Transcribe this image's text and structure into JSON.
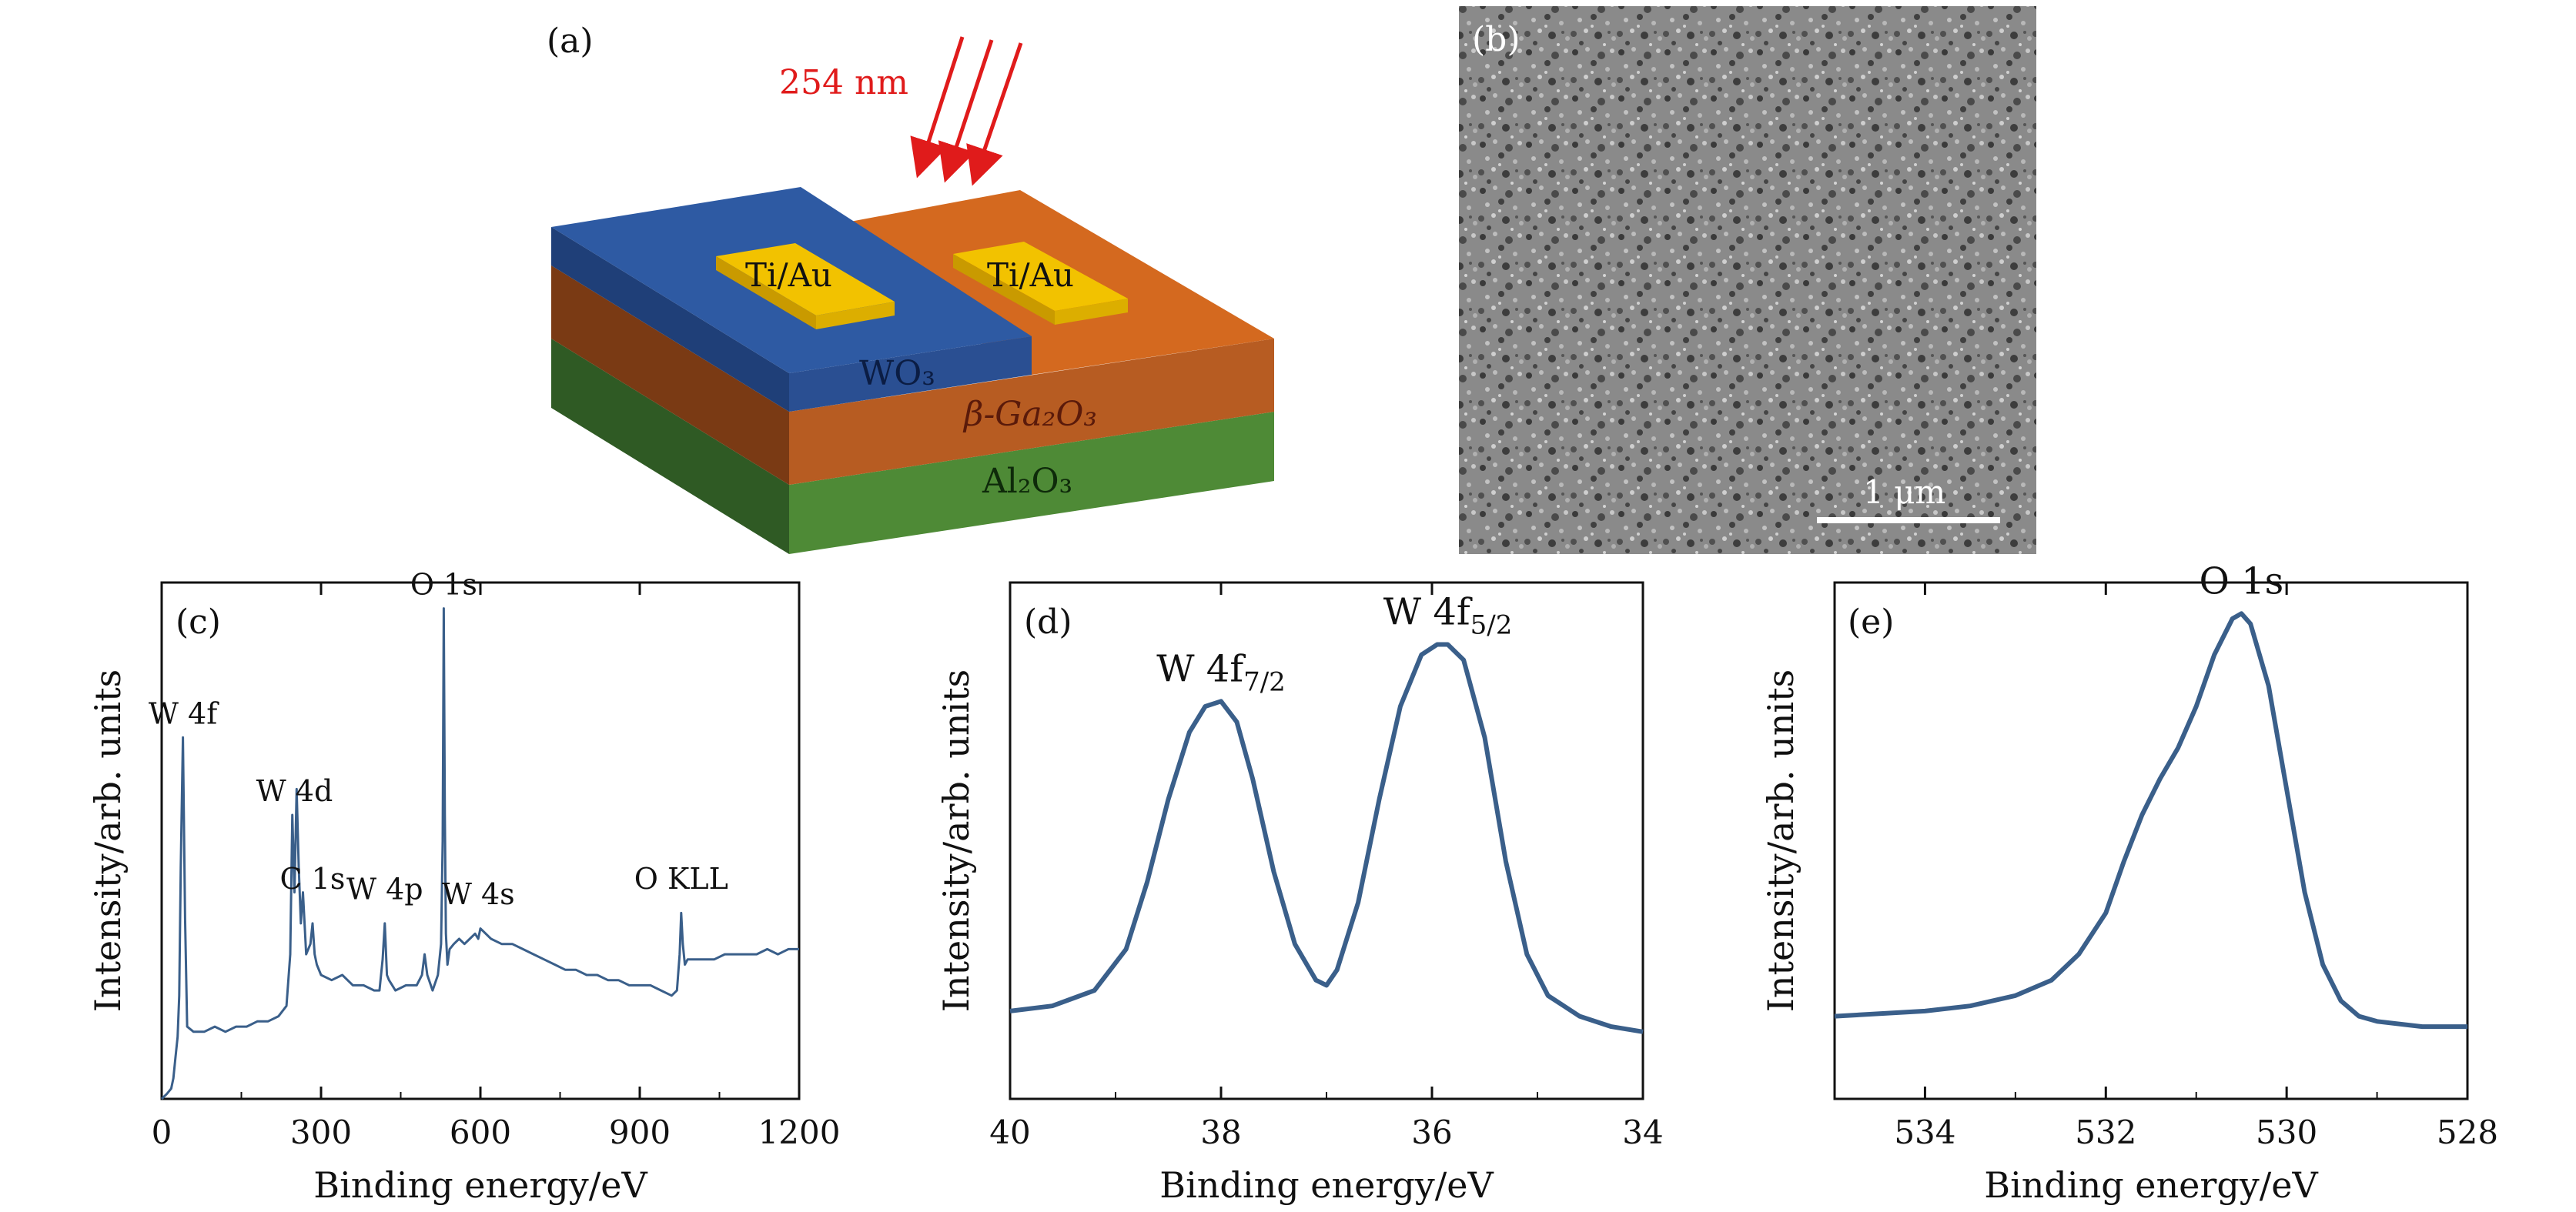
{
  "panels": {
    "a": {
      "label": "(a)",
      "light_label": "254 nm",
      "layers": {
        "wo3": "WO₃",
        "ga2o3": "β-Ga₂O₃",
        "al2o3": "Al₂O₃"
      },
      "electrodes": [
        "Ti/Au",
        "Ti/Au"
      ],
      "colors": {
        "wo3": "#2e5aa3",
        "ga2o3": "#d4691f",
        "al2o3": "#4e8a36",
        "electrode": "#f2c200",
        "light": "#e01b1b"
      }
    },
    "b": {
      "label": "(b)",
      "scale_bar_label": "1 μm"
    },
    "c": {
      "label": "(c)"
    },
    "d": {
      "label": "(d)"
    },
    "e": {
      "label": "(e)"
    }
  },
  "chart_data": [
    {
      "id": "c",
      "type": "line",
      "xlabel": "Binding energy/eV",
      "ylabel": "Intensity/arb. units",
      "xlim": [
        0,
        1200
      ],
      "xticks": [
        0,
        300,
        600,
        900,
        1200
      ],
      "tick_labels": [
        "0",
        "300",
        "600",
        "900",
        "1200"
      ],
      "ylim": [
        0,
        100
      ],
      "line_color": "#3a5f8a",
      "series": [
        {
          "x": [
            0,
            10,
            18,
            22,
            26,
            30,
            33,
            36,
            40,
            44,
            48,
            60,
            80,
            100,
            120,
            140,
            160,
            180,
            200,
            220,
            235,
            242,
            246,
            250,
            254,
            258,
            262,
            266,
            272,
            280,
            284,
            288,
            292,
            300,
            320,
            340,
            360,
            380,
            400,
            410,
            416,
            420,
            424,
            428,
            434,
            440,
            460,
            480,
            490,
            495,
            500,
            510,
            520,
            526,
            529,
            531,
            533,
            535,
            538,
            542,
            550,
            560,
            570,
            580,
            590,
            596,
            600,
            620,
            640,
            660,
            680,
            700,
            720,
            740,
            760,
            780,
            800,
            820,
            840,
            860,
            880,
            900,
            920,
            940,
            960,
            970,
            975,
            978,
            981,
            985,
            990,
            1000,
            1020,
            1040,
            1060,
            1080,
            1100,
            1120,
            1140,
            1160,
            1180,
            1200
          ],
          "y": [
            0,
            1,
            2,
            4,
            8,
            12,
            20,
            45,
            70,
            35,
            14,
            13,
            13,
            14,
            13,
            14,
            14,
            15,
            15,
            16,
            18,
            28,
            55,
            40,
            60,
            45,
            34,
            40,
            28,
            30,
            34,
            28,
            26,
            24,
            23,
            24,
            22,
            22,
            21,
            21,
            27,
            34,
            24,
            23,
            22,
            21,
            22,
            22,
            24,
            28,
            24,
            21,
            24,
            30,
            50,
            95,
            55,
            32,
            26,
            29,
            30,
            31,
            30,
            31,
            32,
            31,
            33,
            31,
            30,
            30,
            29,
            28,
            27,
            26,
            25,
            25,
            24,
            24,
            23,
            23,
            22,
            22,
            22,
            21,
            20,
            21,
            28,
            36,
            30,
            26,
            27,
            27,
            27,
            27,
            28,
            28,
            28,
            28,
            29,
            28,
            29,
            29
          ]
        }
      ],
      "annotations": [
        {
          "text": "W 4f",
          "x": 40,
          "y": 70
        },
        {
          "text": "W 4d",
          "x": 250,
          "y": 55
        },
        {
          "text": "C 1s",
          "x": 284,
          "y": 38
        },
        {
          "text": "W 4p",
          "x": 420,
          "y": 36
        },
        {
          "text": "W 4s",
          "x": 596,
          "y": 35
        },
        {
          "text": "O 1s",
          "x": 531,
          "y": 95
        },
        {
          "text": "O KLL",
          "x": 978,
          "y": 38
        }
      ]
    },
    {
      "id": "d",
      "type": "line",
      "xlabel": "Binding energy/eV",
      "ylabel": "Intensity/arb. units",
      "xlim": [
        40,
        34
      ],
      "xticks": [
        40,
        38,
        36,
        34
      ],
      "tick_labels": [
        "40",
        "38",
        "36",
        "34"
      ],
      "ylim": [
        0,
        100
      ],
      "line_color": "#3a5f8a",
      "series": [
        {
          "x": [
            40.0,
            39.6,
            39.2,
            38.9,
            38.7,
            38.5,
            38.3,
            38.15,
            38.0,
            37.85,
            37.7,
            37.5,
            37.3,
            37.1,
            37.0,
            36.9,
            36.7,
            36.5,
            36.3,
            36.1,
            35.95,
            35.85,
            35.7,
            35.5,
            35.3,
            35.1,
            34.9,
            34.6,
            34.3,
            34.0
          ],
          "y": [
            17,
            18,
            21,
            29,
            42,
            58,
            71,
            76,
            77,
            73,
            62,
            44,
            30,
            23,
            22,
            25,
            38,
            58,
            76,
            86,
            88,
            88,
            85,
            70,
            46,
            28,
            20,
            16,
            14,
            13
          ]
        }
      ],
      "annotations": [
        {
          "text": "W 4f",
          "sub": "7/2",
          "x": 38.0,
          "y": 77
        },
        {
          "text": "W 4f",
          "sub": "5/2",
          "x": 35.85,
          "y": 88
        }
      ]
    },
    {
      "id": "e",
      "type": "line",
      "xlabel": "Binding energy/eV",
      "ylabel": "Intensity/arb. units",
      "xlim": [
        535,
        528
      ],
      "xticks": [
        534,
        532,
        530,
        528
      ],
      "tick_labels": [
        "534",
        "532",
        "530",
        "528"
      ],
      "ylim": [
        0,
        100
      ],
      "line_color": "#3a5f8a",
      "series": [
        {
          "x": [
            535.0,
            534.0,
            533.5,
            533.0,
            532.6,
            532.3,
            532.0,
            531.8,
            531.6,
            531.4,
            531.2,
            531.0,
            530.8,
            530.6,
            530.5,
            530.4,
            530.2,
            530.0,
            529.8,
            529.6,
            529.4,
            529.2,
            529.0,
            528.5,
            528.0
          ],
          "y": [
            16,
            17,
            18,
            20,
            23,
            28,
            36,
            46,
            55,
            62,
            68,
            76,
            86,
            93,
            94,
            92,
            80,
            60,
            40,
            26,
            19,
            16,
            15,
            14,
            14
          ]
        }
      ],
      "annotations": [
        {
          "text": "O 1s",
          "x": 530.5,
          "y": 94
        }
      ]
    }
  ]
}
